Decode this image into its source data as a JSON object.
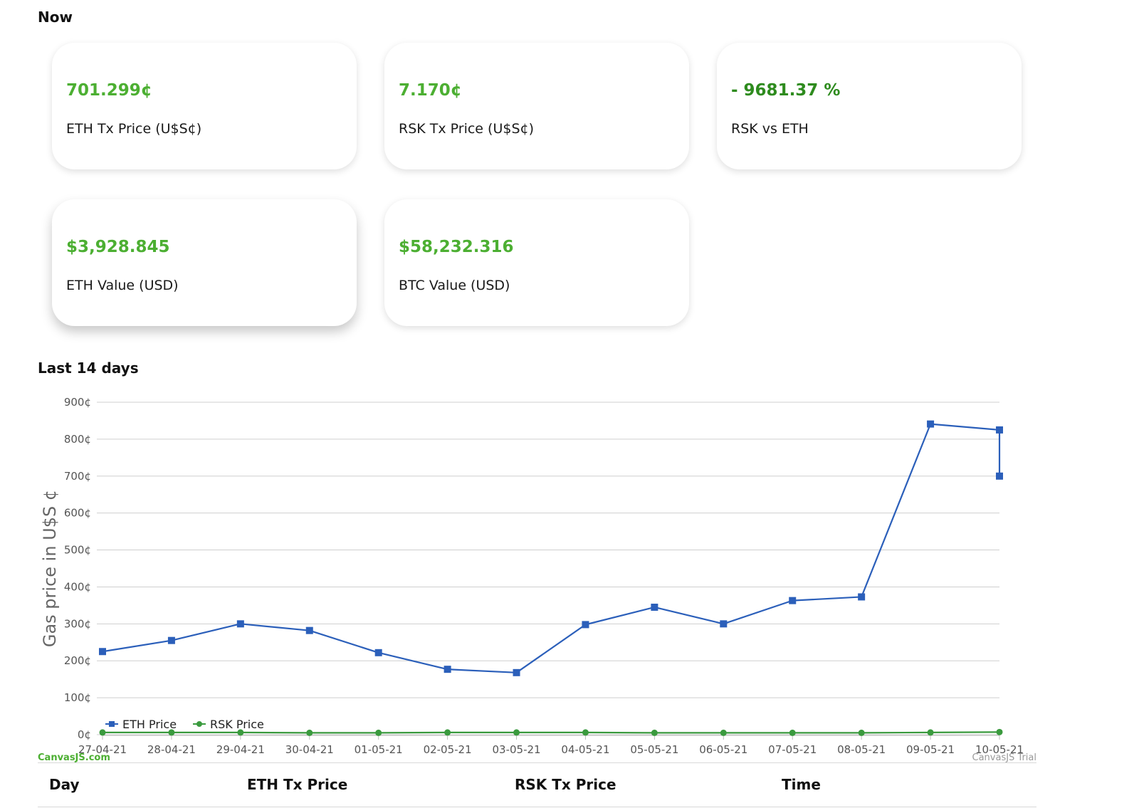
{
  "now": {
    "title": "Now",
    "cards": [
      {
        "value": "701.299¢",
        "label": "ETH Tx Price (U$S¢)"
      },
      {
        "value": "7.170¢",
        "label": "RSK Tx Price (U$S¢)"
      },
      {
        "value": "- 9681.37 %",
        "label": "RSK vs ETH"
      },
      {
        "value": "$3,928.845",
        "label": "ETH Value (USD)"
      },
      {
        "value": "$58,232.316",
        "label": "BTC Value (USD)"
      }
    ]
  },
  "last14": {
    "title": "Last 14 days"
  },
  "chart_data": {
    "type": "line",
    "ylabel": "Gas price in U$S ¢",
    "xlabel": "",
    "ylim": [
      0,
      900
    ],
    "y_ticks": [
      "0¢",
      "100¢",
      "200¢",
      "300¢",
      "400¢",
      "500¢",
      "600¢",
      "700¢",
      "800¢",
      "900¢"
    ],
    "y_tick_values": [
      0,
      100,
      200,
      300,
      400,
      500,
      600,
      700,
      800,
      900
    ],
    "categories": [
      "27-04-21",
      "28-04-21",
      "29-04-21",
      "30-04-21",
      "01-05-21",
      "02-05-21",
      "03-05-21",
      "04-05-21",
      "05-05-21",
      "06-05-21",
      "07-05-21",
      "08-05-21",
      "09-05-21",
      "10-05-21"
    ],
    "series": [
      {
        "name": "ETH Price",
        "color": "#2b5fba",
        "marker": "square",
        "x": [
          0,
          1,
          2,
          3,
          4,
          5,
          6,
          7,
          8,
          9,
          10,
          11,
          12,
          13,
          13
        ],
        "values": [
          225,
          255,
          300,
          282,
          222,
          177,
          168,
          298,
          345,
          300,
          363,
          373,
          841,
          825,
          700
        ]
      },
      {
        "name": "RSK Price",
        "color": "#3a9a3e",
        "marker": "circle",
        "x": [
          0,
          1,
          2,
          3,
          4,
          5,
          6,
          7,
          8,
          9,
          10,
          11,
          12,
          13
        ],
        "values": [
          6,
          6,
          6,
          5,
          5,
          6,
          6,
          6,
          5,
          5,
          5,
          5,
          6,
          7
        ]
      }
    ],
    "legend_position": "bottom-left",
    "grid": true,
    "watermark_left": "CanvasJS.com",
    "watermark_right": "CanvasJS Trial"
  },
  "table": {
    "headers": [
      "Day",
      "ETH Tx Price",
      "RSK Tx Price",
      "Time"
    ]
  }
}
